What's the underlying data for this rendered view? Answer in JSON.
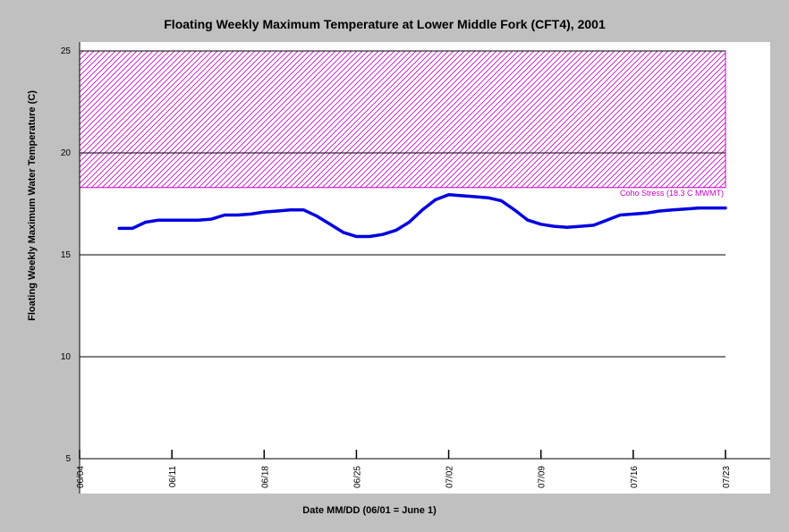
{
  "chart_data": {
    "type": "line",
    "title": "Floating Weekly Maximum Temperature at Lower Middle Fork (CFT4), 2001",
    "xlabel": "Date MM/DD (06/01 = June 1)",
    "ylabel": "Floating Weekly Maximum Water Temperature (C)",
    "xlim": [
      "06/04",
      "07/23"
    ],
    "ylim": [
      5,
      25
    ],
    "x_ticks": [
      "06/04",
      "06/11",
      "06/18",
      "06/25",
      "07/02",
      "07/09",
      "07/16",
      "07/23"
    ],
    "y_ticks": [
      5,
      10,
      15,
      20,
      25
    ],
    "grid": "horizontal",
    "legend": "none",
    "series": [
      {
        "color": "#0000e0",
        "x": [
          "06/07",
          "06/08",
          "06/09",
          "06/10",
          "06/11",
          "06/12",
          "06/13",
          "06/14",
          "06/15",
          "06/16",
          "06/17",
          "06/18",
          "06/19",
          "06/20",
          "06/21",
          "06/22",
          "06/23",
          "06/24",
          "06/25",
          "06/26",
          "06/27",
          "06/28",
          "06/29",
          "06/30",
          "07/01",
          "07/02",
          "07/03",
          "07/04",
          "07/05",
          "07/06",
          "07/07",
          "07/08",
          "07/09",
          "07/10",
          "07/11",
          "07/12",
          "07/13",
          "07/14",
          "07/15",
          "07/16",
          "07/17",
          "07/18",
          "07/19",
          "07/20",
          "07/21",
          "07/22",
          "07/23"
        ],
        "values": [
          16.3,
          16.3,
          16.6,
          16.7,
          16.7,
          16.7,
          16.7,
          16.75,
          16.95,
          16.95,
          17.0,
          17.1,
          17.15,
          17.2,
          17.2,
          16.9,
          16.5,
          16.1,
          15.9,
          15.9,
          16.0,
          16.2,
          16.6,
          17.2,
          17.7,
          17.95,
          17.9,
          17.85,
          17.8,
          17.65,
          17.2,
          16.7,
          16.5,
          16.4,
          16.35,
          16.4,
          16.45,
          16.7,
          16.95,
          17.0,
          17.05,
          17.15,
          17.2,
          17.25,
          17.3,
          17.3,
          17.3
        ]
      }
    ],
    "stress_zone": {
      "label": "Coho Stress (18.3 C MWMT)",
      "y_from": 18.3,
      "y_to": 25,
      "color": "#cc00cc"
    }
  }
}
